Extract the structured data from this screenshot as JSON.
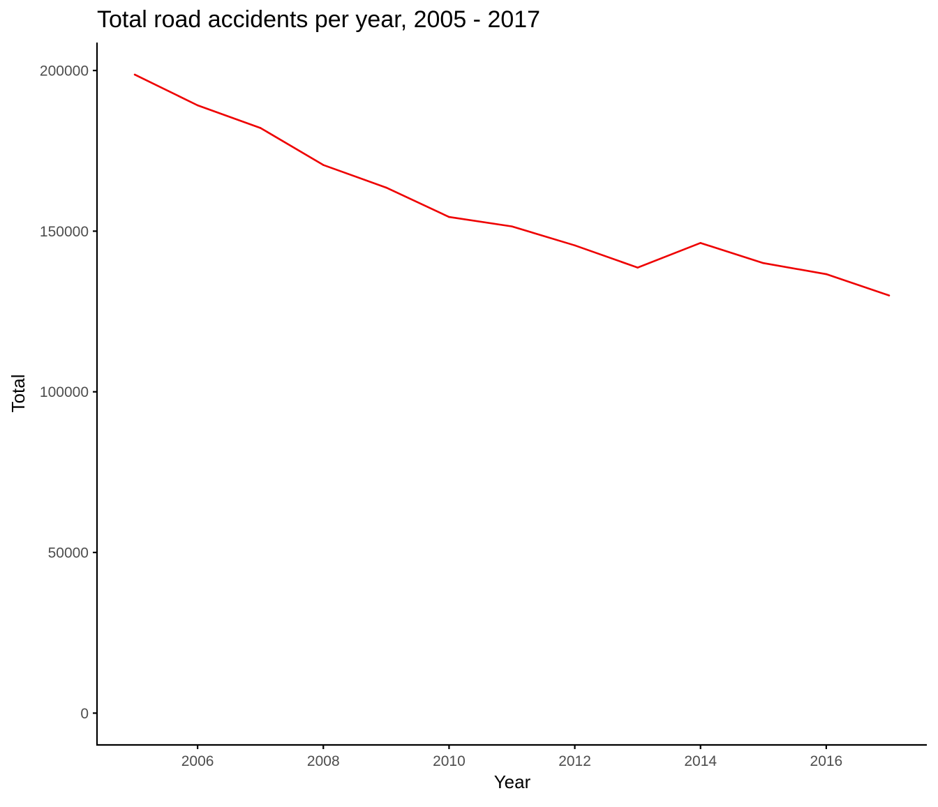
{
  "chart_data": {
    "type": "line",
    "title": "Total road accidents per year, 2005 - 2017",
    "xlabel": "Year",
    "ylabel": "Total",
    "x": [
      2005,
      2006,
      2007,
      2008,
      2009,
      2010,
      2011,
      2012,
      2013,
      2014,
      2015,
      2016,
      2017
    ],
    "series": [
      {
        "values": [
          198735,
          189161,
          182115,
          170591,
          163554,
          154414,
          151474,
          145571,
          138660,
          146322,
          140056,
          136621,
          129982
        ],
        "color": "#ee0000"
      }
    ],
    "xlim": [
      2004.4,
      2017.6
    ],
    "ylim": [
      -9900,
      208700
    ],
    "x_ticks": [
      2006,
      2008,
      2010,
      2012,
      2014,
      2016
    ],
    "y_ticks": [
      0,
      50000,
      100000,
      150000,
      200000
    ],
    "x_tick_labels": [
      "2006",
      "2008",
      "2010",
      "2012",
      "2014",
      "2016"
    ],
    "y_tick_labels": [
      "0",
      "50000",
      "100000",
      "150000",
      "200000"
    ],
    "grid": false,
    "legend": "none",
    "background": "#ffffff",
    "axis_color": "#000000",
    "tick_label_color": "#4d4d4d"
  }
}
